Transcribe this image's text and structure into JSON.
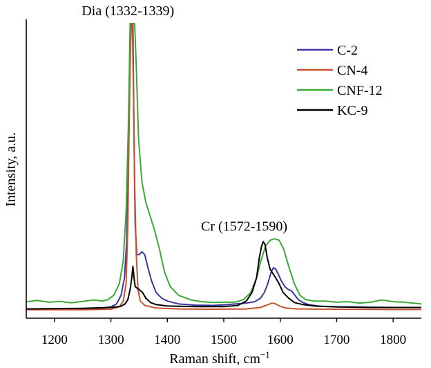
{
  "chart_data": {
    "type": "line",
    "xlabel": "Raman shift, cm",
    "xlabel_sup": "−1",
    "ylabel": "Intensity, a.u.",
    "xlim": [
      1150,
      1850
    ],
    "ylim": [
      0,
      100
    ],
    "xticks": [
      1200,
      1300,
      1400,
      1500,
      1600,
      1700,
      1800
    ],
    "grid": false,
    "legend_position": "top-right",
    "annotations": [
      {
        "text": "Dia (1332-1339)",
        "x": 1340,
        "y": 103
      },
      {
        "text": "Cr (1572-1590)",
        "x": 1590,
        "y": 28
      }
    ],
    "series": [
      {
        "name": "C-2",
        "color": "#3d35a0",
        "points": [
          [
            1150,
            1.3
          ],
          [
            1200,
            1.3
          ],
          [
            1250,
            1.4
          ],
          [
            1280,
            1.5
          ],
          [
            1300,
            2
          ],
          [
            1310,
            3
          ],
          [
            1318,
            6
          ],
          [
            1324,
            12
          ],
          [
            1328,
            25
          ],
          [
            1331,
            50
          ],
          [
            1333,
            80
          ],
          [
            1335,
            100
          ],
          [
            1337,
            100
          ],
          [
            1339,
            100
          ],
          [
            1341,
            60
          ],
          [
            1343,
            30
          ],
          [
            1346,
            20
          ],
          [
            1350,
            20
          ],
          [
            1355,
            21
          ],
          [
            1360,
            20
          ],
          [
            1365,
            16
          ],
          [
            1372,
            11
          ],
          [
            1380,
            7
          ],
          [
            1390,
            5
          ],
          [
            1400,
            4
          ],
          [
            1420,
            3
          ],
          [
            1450,
            2.6
          ],
          [
            1480,
            2.5
          ],
          [
            1500,
            2.7
          ],
          [
            1520,
            3
          ],
          [
            1540,
            3.3
          ],
          [
            1555,
            3.8
          ],
          [
            1565,
            5
          ],
          [
            1572,
            7
          ],
          [
            1578,
            10
          ],
          [
            1584,
            14
          ],
          [
            1588,
            15.5
          ],
          [
            1592,
            15
          ],
          [
            1597,
            13
          ],
          [
            1602,
            11
          ],
          [
            1608,
            9
          ],
          [
            1614,
            8
          ],
          [
            1620,
            7.5
          ],
          [
            1626,
            6
          ],
          [
            1632,
            4.5
          ],
          [
            1640,
            3.5
          ],
          [
            1650,
            2.8
          ],
          [
            1670,
            2.2
          ],
          [
            1700,
            2.0
          ],
          [
            1750,
            1.9
          ],
          [
            1800,
            1.8
          ],
          [
            1850,
            1.8
          ]
        ]
      },
      {
        "name": "CN-4",
        "color": "#c5522d",
        "points": [
          [
            1150,
            1.0
          ],
          [
            1200,
            1.0
          ],
          [
            1250,
            1.0
          ],
          [
            1300,
            1.2
          ],
          [
            1315,
            2
          ],
          [
            1322,
            4
          ],
          [
            1327,
            10
          ],
          [
            1330,
            30
          ],
          [
            1332,
            60
          ],
          [
            1334,
            85
          ],
          [
            1336,
            100
          ],
          [
            1338,
            100
          ],
          [
            1340,
            75
          ],
          [
            1342,
            45
          ],
          [
            1345,
            20
          ],
          [
            1348,
            8
          ],
          [
            1352,
            4
          ],
          [
            1360,
            2.5
          ],
          [
            1380,
            1.6
          ],
          [
            1420,
            1.3
          ],
          [
            1480,
            1.2
          ],
          [
            1540,
            1.3
          ],
          [
            1565,
            1.8
          ],
          [
            1575,
            2.5
          ],
          [
            1585,
            3.3
          ],
          [
            1592,
            3
          ],
          [
            1600,
            2.2
          ],
          [
            1610,
            1.6
          ],
          [
            1630,
            1.3
          ],
          [
            1700,
            1.2
          ],
          [
            1800,
            1.1
          ],
          [
            1850,
            1.1
          ]
        ]
      },
      {
        "name": "CNF-12",
        "color": "#3aaa35",
        "points": [
          [
            1150,
            3.8
          ],
          [
            1170,
            4.2
          ],
          [
            1190,
            3.6
          ],
          [
            1210,
            3.9
          ],
          [
            1230,
            3.4
          ],
          [
            1250,
            3.9
          ],
          [
            1270,
            4.4
          ],
          [
            1285,
            4.0
          ],
          [
            1295,
            4.5
          ],
          [
            1305,
            6
          ],
          [
            1315,
            10
          ],
          [
            1322,
            18
          ],
          [
            1327,
            35
          ],
          [
            1331,
            65
          ],
          [
            1334,
            100
          ],
          [
            1338,
            100
          ],
          [
            1342,
            100
          ],
          [
            1345,
            85
          ],
          [
            1349,
            60
          ],
          [
            1355,
            45
          ],
          [
            1362,
            38
          ],
          [
            1370,
            33
          ],
          [
            1378,
            28
          ],
          [
            1386,
            22
          ],
          [
            1395,
            14
          ],
          [
            1405,
            9
          ],
          [
            1420,
            6
          ],
          [
            1440,
            4.5
          ],
          [
            1460,
            3.8
          ],
          [
            1480,
            3.5
          ],
          [
            1500,
            3.6
          ],
          [
            1520,
            3.6
          ],
          [
            1535,
            4.5
          ],
          [
            1548,
            7
          ],
          [
            1558,
            12
          ],
          [
            1566,
            18
          ],
          [
            1574,
            23
          ],
          [
            1582,
            25
          ],
          [
            1590,
            25.5
          ],
          [
            1598,
            25
          ],
          [
            1606,
            22
          ],
          [
            1615,
            16
          ],
          [
            1625,
            10
          ],
          [
            1635,
            6
          ],
          [
            1645,
            4.5
          ],
          [
            1660,
            4
          ],
          [
            1680,
            4
          ],
          [
            1700,
            3.6
          ],
          [
            1720,
            3.8
          ],
          [
            1740,
            3.3
          ],
          [
            1760,
            3.6
          ],
          [
            1780,
            4.4
          ],
          [
            1800,
            3.8
          ],
          [
            1820,
            3.6
          ],
          [
            1850,
            3.0
          ]
        ]
      },
      {
        "name": "KC-9",
        "color": "#000000",
        "points": [
          [
            1150,
            1.3
          ],
          [
            1200,
            1.4
          ],
          [
            1250,
            1.5
          ],
          [
            1300,
            1.8
          ],
          [
            1318,
            2.2
          ],
          [
            1325,
            3
          ],
          [
            1330,
            4.5
          ],
          [
            1334,
            8
          ],
          [
            1337,
            12
          ],
          [
            1339,
            16
          ],
          [
            1341,
            12
          ],
          [
            1343,
            9
          ],
          [
            1346,
            8.5
          ],
          [
            1350,
            8
          ],
          [
            1356,
            7
          ],
          [
            1362,
            5
          ],
          [
            1370,
            3.5
          ],
          [
            1380,
            2.8
          ],
          [
            1400,
            2.3
          ],
          [
            1450,
            2.1
          ],
          [
            1500,
            2.1
          ],
          [
            1525,
            2.5
          ],
          [
            1540,
            4
          ],
          [
            1550,
            7
          ],
          [
            1558,
            12
          ],
          [
            1563,
            19
          ],
          [
            1567,
            23
          ],
          [
            1570,
            24.5
          ],
          [
            1573,
            23.5
          ],
          [
            1577,
            19
          ],
          [
            1582,
            15
          ],
          [
            1587,
            13.5
          ],
          [
            1592,
            12
          ],
          [
            1598,
            10
          ],
          [
            1605,
            7
          ],
          [
            1615,
            5
          ],
          [
            1625,
            3.5
          ],
          [
            1640,
            2.8
          ],
          [
            1660,
            2.3
          ],
          [
            1700,
            2.0
          ],
          [
            1760,
            1.8
          ],
          [
            1850,
            1.8
          ]
        ]
      }
    ]
  }
}
